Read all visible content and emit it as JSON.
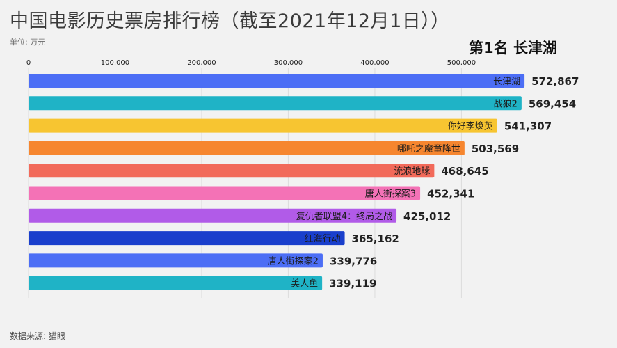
{
  "title": "中国电影历史票房排行榜（截至2021年12月1日））",
  "unit": "单位: 万元",
  "rank_label": "第1名 长津湖",
  "source": "数据来源: 猫眼",
  "chart_data": {
    "type": "bar",
    "orientation": "horizontal",
    "xlim": [
      0,
      600000
    ],
    "ticks": [
      0,
      100000,
      200000,
      300000,
      400000,
      500000
    ],
    "tick_labels": [
      "0",
      "100,000",
      "200,000",
      "300,000",
      "400,000",
      "500,000"
    ],
    "categories": [
      "长津湖",
      "战狼2",
      "你好李焕英",
      "哪吒之魔童降世",
      "流浪地球",
      "唐人街探案3",
      "复仇者联盟4：终局之战",
      "红海行动",
      "唐人街探案2",
      "美人鱼"
    ],
    "values": [
      572867,
      569454,
      541307,
      503569,
      468645,
      452341,
      425012,
      365162,
      339776,
      339119
    ],
    "value_labels": [
      "572,867",
      "569,454",
      "541,307",
      "503,569",
      "468,645",
      "452,341",
      "425,012",
      "365,162",
      "339,776",
      "339,119"
    ],
    "colors": [
      "#4c6ef5",
      "#1fb3c6",
      "#f7c531",
      "#f6862f",
      "#f26a5a",
      "#f472b6",
      "#b15be8",
      "#1a3fcc",
      "#4c6ef5",
      "#1fb3c6"
    ],
    "grid": true
  }
}
